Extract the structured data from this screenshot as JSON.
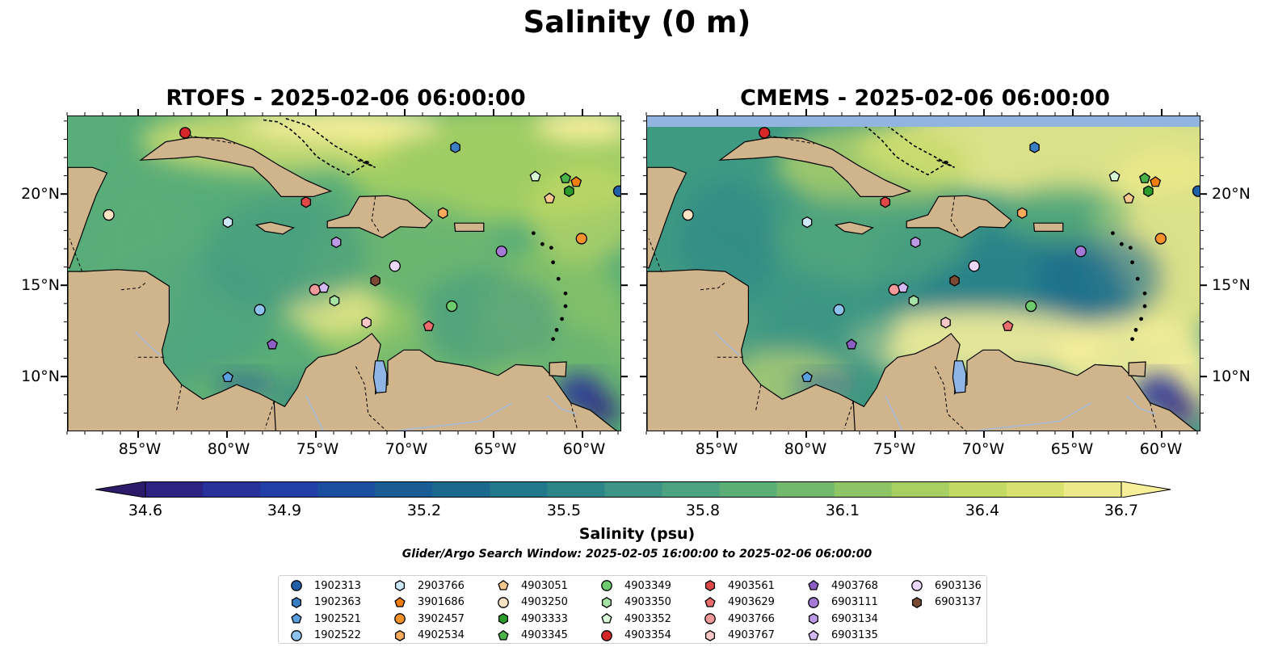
{
  "figure": {
    "title": "Salinity (0 m)",
    "panels": [
      {
        "title": "RTOFS - 2025-02-06 06:00:00"
      },
      {
        "title": "CMEMS - 2025-02-06 06:00:00"
      }
    ],
    "lon_ticks": [
      "85°W",
      "80°W",
      "75°W",
      "70°W",
      "65°W",
      "60°W"
    ],
    "lat_ticks": [
      "20°N",
      "15°N",
      "10°N"
    ],
    "colorbar": {
      "label": "Salinity (psu)",
      "ticks": [
        "34.6",
        "34.9",
        "35.2",
        "35.5",
        "35.8",
        "36.1",
        "36.4",
        "36.7"
      ],
      "min": 34.6,
      "max": 36.7,
      "colors": [
        "#2c1a6b",
        "#2b2283",
        "#28309a",
        "#213fa6",
        "#1a4e9e",
        "#1a5c94",
        "#1b6a8e",
        "#22788b",
        "#2c8689",
        "#3b9486",
        "#4ba180",
        "#5cae77",
        "#72b96e",
        "#8cc466",
        "#a7d062",
        "#c2d964",
        "#d9e16e",
        "#ece98a",
        "#f7ef9a"
      ],
      "extend": "both"
    },
    "search_window_note": "Glider/Argo Search Window: 2025-02-05 16:00:00 to 2025-02-06 06:00:00"
  },
  "map_colors": {
    "land": "#d0b48c",
    "lake": "#8eb5e6",
    "river": "#a5b9d6",
    "deep_fresh": "#2b1a6b",
    "missing": "#92b5e0"
  },
  "floats": [
    {
      "id": "1902313",
      "marker": "circle",
      "color": "#1f5fa8",
      "lon": -58.0,
      "lat": 20.2
    },
    {
      "id": "1902363",
      "marker": "hexagon",
      "color": "#3a7fc4",
      "lon": -67.2,
      "lat": 22.6
    },
    {
      "id": "1902521",
      "marker": "pentagon",
      "color": "#5a9fe0",
      "lon": -80.0,
      "lat": 10.0
    },
    {
      "id": "1902522",
      "marker": "circle",
      "color": "#8ec3f0",
      "lon": -78.2,
      "lat": 13.7
    },
    {
      "id": "2903766",
      "marker": "hexagon",
      "color": "#cde8fb",
      "lon": -80.0,
      "lat": 18.5
    },
    {
      "id": "3901686",
      "marker": "pentagon",
      "color": "#f07d0c",
      "lon": -60.4,
      "lat": 20.7
    },
    {
      "id": "3902457",
      "marker": "circle",
      "color": "#f7922a",
      "lon": -60.1,
      "lat": 17.6
    },
    {
      "id": "4902534",
      "marker": "hexagon",
      "color": "#f9ab5b",
      "lon": -67.9,
      "lat": 19.0
    },
    {
      "id": "4903051",
      "marker": "pentagon",
      "color": "#fbc98e",
      "lon": -61.9,
      "lat": 19.8
    },
    {
      "id": "4903250",
      "marker": "circle",
      "color": "#fde3c3",
      "lon": -86.7,
      "lat": 18.9
    },
    {
      "id": "4903333",
      "marker": "hexagon",
      "color": "#2a9a2a",
      "lon": -60.8,
      "lat": 20.2
    },
    {
      "id": "4903345",
      "marker": "pentagon",
      "color": "#49b249",
      "lon": -61.0,
      "lat": 20.9
    },
    {
      "id": "4903349",
      "marker": "circle",
      "color": "#6ccb6c",
      "lon": -67.4,
      "lat": 13.9
    },
    {
      "id": "4903350",
      "marker": "hexagon",
      "color": "#a4e3a4",
      "lon": -74.0,
      "lat": 14.2
    },
    {
      "id": "4903352",
      "marker": "pentagon",
      "color": "#d7f7d7",
      "lon": -62.7,
      "lat": 21.0
    },
    {
      "id": "4903354",
      "marker": "circle",
      "color": "#d32728",
      "lon": -82.4,
      "lat": 23.4
    },
    {
      "id": "4903561",
      "marker": "hexagon",
      "color": "#e04848",
      "lon": -75.6,
      "lat": 19.6
    },
    {
      "id": "4903629",
      "marker": "pentagon",
      "color": "#ea6c6c",
      "lon": -68.7,
      "lat": 12.8
    },
    {
      "id": "4903766",
      "marker": "circle",
      "color": "#f29a9a",
      "lon": -75.1,
      "lat": 14.8
    },
    {
      "id": "4903767",
      "marker": "hexagon",
      "color": "#fbc8c8",
      "lon": -72.2,
      "lat": 13.0
    },
    {
      "id": "4903768",
      "marker": "pentagon",
      "color": "#8c5fc4",
      "lon": -77.5,
      "lat": 11.8
    },
    {
      "id": "6903111",
      "marker": "circle",
      "color": "#a57ad6",
      "lon": -64.6,
      "lat": 16.9
    },
    {
      "id": "6903134",
      "marker": "hexagon",
      "color": "#bc9ae6",
      "lon": -73.9,
      "lat": 17.4
    },
    {
      "id": "6903135",
      "marker": "pentagon",
      "color": "#d4b8f2",
      "lon": -74.6,
      "lat": 14.9
    },
    {
      "id": "6903136",
      "marker": "circle",
      "color": "#ecd8fb",
      "lon": -70.6,
      "lat": 16.1
    },
    {
      "id": "6903137",
      "marker": "hexagon",
      "color": "#7a4a34",
      "lon": -71.7,
      "lat": 15.3
    }
  ]
}
